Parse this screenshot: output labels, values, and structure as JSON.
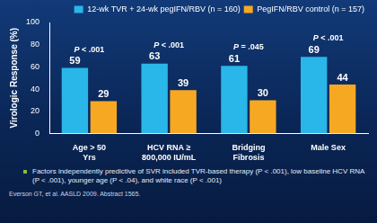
{
  "chart_data": {
    "type": "bar",
    "y_label": "Virologic Response (%)",
    "categories": [
      [
        "Age > 50",
        "Yrs"
      ],
      [
        "HCV RNA ≥",
        "800,000 IU/mL"
      ],
      [
        "Bridging",
        "Fibrosis"
      ],
      [
        "Male Sex"
      ]
    ],
    "series": [
      {
        "name": "12-wk TVR + 24-wk pegIFN/RBV (n = 160)",
        "color": "#29b6e8",
        "values": [
          59,
          63,
          61,
          69
        ]
      },
      {
        "name": "PegIFN/RBV control (n = 157)",
        "color": "#f7a823",
        "values": [
          29,
          39,
          30,
          44
        ]
      }
    ],
    "annotations": [
      "P < .001",
      "P < .001",
      "P = .045",
      "P < .001"
    ],
    "ylim": [
      0,
      100
    ],
    "yticks": [
      0,
      20,
      40,
      60,
      80,
      100
    ],
    "grid": false,
    "legend": "top-right",
    "data_labels": true,
    "footnote": "Factors independently predictive of SVR included TVR-based therapy (P < .001), low baseline HCV RNA (P < .001), younger age (P < .04), and white race (P < .001)",
    "source": "Everson GT, et al. AASLD 2009. Abstract 1565."
  }
}
